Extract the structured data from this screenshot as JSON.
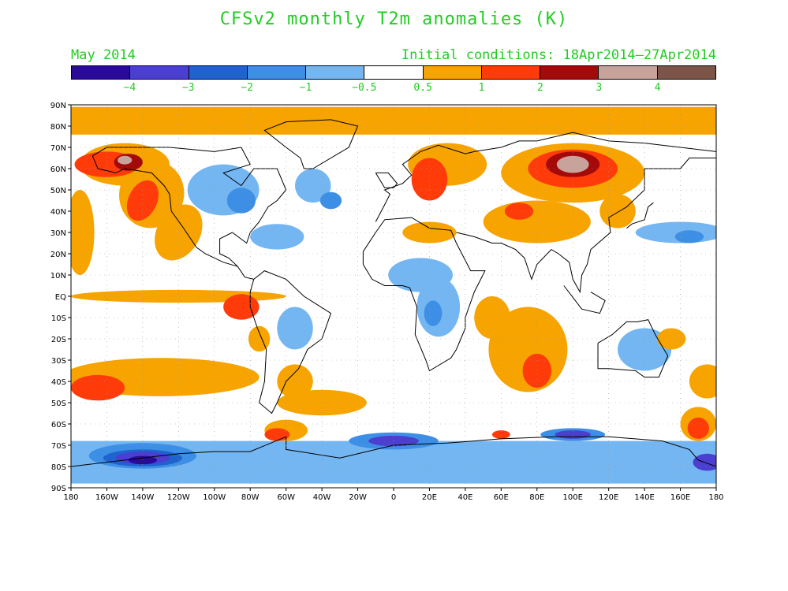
{
  "title": "CFSv2 monthly T2m anomalies (K)",
  "forecast_month": "May 2014",
  "initial_conditions": "Initial conditions: 18Apr2014–27Apr2014",
  "colorbar": {
    "colors": [
      "#2a0a9a",
      "#4a3fd0",
      "#1f63cf",
      "#3d8fe6",
      "#74b6f2",
      "#ffffff",
      "#f7a300",
      "#ff3b0a",
      "#a50a0a",
      "#c8a39b",
      "#7d5548"
    ],
    "boundaries": [
      "−4",
      "−3",
      "−2",
      "−1",
      "−0.5",
      "0.5",
      "1",
      "2",
      "3",
      "4"
    ]
  },
  "lat_labels": [
    "90N",
    "80N",
    "70N",
    "60N",
    "50N",
    "40N",
    "30N",
    "20N",
    "10N",
    "EQ",
    "10S",
    "20S",
    "30S",
    "40S",
    "50S",
    "60S",
    "70S",
    "80S",
    "90S"
  ],
  "lon_labels": [
    "180",
    "160W",
    "140W",
    "120W",
    "100W",
    "80W",
    "60W",
    "40W",
    "20W",
    "0",
    "20E",
    "40E",
    "60E",
    "80E",
    "100E",
    "120E",
    "140E",
    "160E",
    "180"
  ],
  "colors": {
    "label_green": "#22cc22",
    "grid": "#999999",
    "coast": "#000000"
  }
}
